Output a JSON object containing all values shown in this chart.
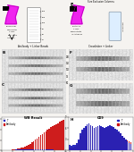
{
  "background_color": "#f0eeec",
  "bar_color_blue": "#2222bb",
  "bar_color_red": "#cc1111",
  "bar_color_magenta": "#cc00cc",
  "flask_color": "#ee00ee",
  "panel_label_fontsize": 4,
  "num_bars": 36,
  "wb_result_title": "WB Result",
  "cd9_title": "CD9",
  "legend_t": "T",
  "legend_ab": "Antibody",
  "blue_values": [
    0.3,
    0.2,
    0.2,
    0.2,
    0.3,
    0.3,
    0.3,
    0.3,
    0.4,
    0.4,
    0.5,
    0.5,
    0.5,
    0.4,
    0.5,
    0.5,
    0.5,
    0.5,
    0.5,
    0.5,
    0.5,
    0.6,
    0.6,
    0.5,
    0.5,
    0.5,
    0.4,
    0.4,
    0.4,
    0.4,
    0.3,
    0.3,
    0.3,
    0.3,
    0.2,
    0.2
  ],
  "red_values": [
    0.2,
    0.2,
    0.2,
    0.2,
    0.3,
    0.3,
    0.4,
    0.5,
    0.6,
    0.8,
    1.0,
    1.2,
    1.5,
    1.8,
    2.2,
    2.8,
    3.2,
    3.8,
    4.5,
    5.2,
    5.8,
    6.5,
    7.2,
    7.8,
    8.5,
    9.2,
    9.8,
    10.5,
    11.0,
    11.5,
    12.0,
    12.5,
    13.0,
    13.5,
    14.0,
    14.5
  ],
  "d_blue_values": [
    1.5,
    1.2,
    1.4,
    1.6,
    2.0,
    3.0,
    4.5,
    5.5,
    6.0,
    6.5,
    7.0,
    7.2,
    6.8,
    6.5,
    6.0,
    6.2,
    6.5,
    6.8,
    6.5,
    6.2,
    6.0,
    6.2,
    6.5,
    6.8,
    6.5,
    6.2,
    5.8,
    5.5,
    5.0,
    4.5,
    4.0,
    3.5,
    3.0,
    2.5,
    2.0,
    1.8
  ],
  "d_red_values": [
    0.8,
    0.7,
    0.8,
    1.0,
    1.5,
    2.5,
    4.0,
    5.0,
    5.5,
    6.0,
    6.5,
    6.8,
    6.5,
    6.2,
    5.8,
    6.0,
    6.3,
    6.5,
    6.3,
    6.0,
    5.8,
    6.0,
    6.3,
    6.5,
    6.3,
    6.0,
    5.5,
    5.2,
    4.8,
    4.5,
    4.0,
    3.5,
    3.0,
    2.8,
    2.5,
    2.2
  ]
}
